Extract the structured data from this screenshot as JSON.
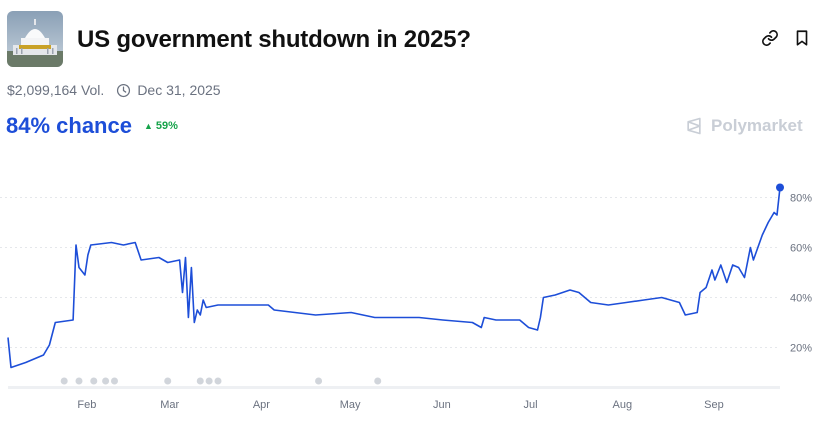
{
  "header": {
    "title": "US government shutdown in 2025?",
    "thumbnail_icon": "capitol-building-thumbnail",
    "link_icon": "link-icon",
    "bookmark_icon": "bookmark-icon"
  },
  "meta": {
    "volume": "$2,099,164 Vol.",
    "end_date": "Dec 31, 2025",
    "date_icon": "clock-icon"
  },
  "odds": {
    "chance": "84% chance",
    "delta": "59%",
    "delta_direction": "up",
    "chance_color": "#1d4ed8",
    "delta_color": "#16a34a"
  },
  "brand": {
    "name": "Polymarket",
    "logo_icon": "polymarket-logo-icon"
  },
  "chart_data": {
    "type": "line",
    "x_tick_labels": [
      "Feb",
      "Mar",
      "Apr",
      "May",
      "Jun",
      "Jul",
      "Aug",
      "Sep"
    ],
    "y_tick_labels": [
      "80%",
      "60%",
      "40%",
      "20%"
    ],
    "y_ticks": [
      80,
      60,
      40,
      20
    ],
    "ylim": [
      5,
      95
    ],
    "grid": true,
    "line_color": "#1d4ed8",
    "series": [
      {
        "points": [
          [
            "2025-01-06",
            24
          ],
          [
            "2025-01-07",
            12
          ],
          [
            "2025-01-12",
            14
          ],
          [
            "2025-01-18",
            17
          ],
          [
            "2025-01-20",
            21
          ],
          [
            "2025-01-22",
            30
          ],
          [
            "2025-01-28",
            31
          ],
          [
            "2025-01-29",
            61
          ],
          [
            "2025-01-30",
            52
          ],
          [
            "2025-02-01",
            49
          ],
          [
            "2025-02-02",
            57
          ],
          [
            "2025-02-03",
            61
          ],
          [
            "2025-02-10",
            62
          ],
          [
            "2025-02-14",
            61
          ],
          [
            "2025-02-18",
            62
          ],
          [
            "2025-02-20",
            55
          ],
          [
            "2025-02-26",
            56
          ],
          [
            "2025-03-01",
            54
          ],
          [
            "2025-03-05",
            55
          ],
          [
            "2025-03-06",
            42
          ],
          [
            "2025-03-07",
            56
          ],
          [
            "2025-03-08",
            32
          ],
          [
            "2025-03-09",
            52
          ],
          [
            "2025-03-10",
            30
          ],
          [
            "2025-03-11",
            35
          ],
          [
            "2025-03-12",
            33
          ],
          [
            "2025-03-13",
            39
          ],
          [
            "2025-03-14",
            36
          ],
          [
            "2025-03-18",
            37
          ],
          [
            "2025-04-04",
            37
          ],
          [
            "2025-04-06",
            35
          ],
          [
            "2025-04-13",
            34
          ],
          [
            "2025-04-20",
            33
          ],
          [
            "2025-05-02",
            34
          ],
          [
            "2025-05-10",
            32
          ],
          [
            "2025-05-25",
            32
          ],
          [
            "2025-06-02",
            31
          ],
          [
            "2025-06-12",
            30
          ],
          [
            "2025-06-15",
            28
          ],
          [
            "2025-06-16",
            32
          ],
          [
            "2025-06-20",
            31
          ],
          [
            "2025-06-28",
            31
          ],
          [
            "2025-07-01",
            28
          ],
          [
            "2025-07-04",
            27
          ],
          [
            "2025-07-05",
            32
          ],
          [
            "2025-07-06",
            40
          ],
          [
            "2025-07-10",
            41
          ],
          [
            "2025-07-15",
            43
          ],
          [
            "2025-07-18",
            42
          ],
          [
            "2025-07-22",
            38
          ],
          [
            "2025-07-28",
            37
          ],
          [
            "2025-08-03",
            38
          ],
          [
            "2025-08-09",
            39
          ],
          [
            "2025-08-15",
            40
          ],
          [
            "2025-08-21",
            38
          ],
          [
            "2025-08-23",
            33
          ],
          [
            "2025-08-27",
            34
          ],
          [
            "2025-08-28",
            42
          ],
          [
            "2025-08-30",
            44
          ],
          [
            "2025-09-01",
            51
          ],
          [
            "2025-09-02",
            47
          ],
          [
            "2025-09-04",
            53
          ],
          [
            "2025-09-06",
            46
          ],
          [
            "2025-09-08",
            53
          ],
          [
            "2025-09-10",
            52
          ],
          [
            "2025-09-12",
            48
          ],
          [
            "2025-09-14",
            60
          ],
          [
            "2025-09-15",
            55
          ],
          [
            "2025-09-18",
            65
          ],
          [
            "2025-09-20",
            70
          ],
          [
            "2025-09-22",
            74
          ],
          [
            "2025-09-23",
            73
          ],
          [
            "2025-09-24",
            84
          ]
        ]
      }
    ],
    "event_markers": [
      "2025-01-25",
      "2025-01-30",
      "2025-02-04",
      "2025-02-08",
      "2025-02-11",
      "2025-03-01",
      "2025-03-12",
      "2025-03-15",
      "2025-03-18",
      "2025-04-21",
      "2025-05-11"
    ],
    "marker_color": "#d1d5db"
  }
}
